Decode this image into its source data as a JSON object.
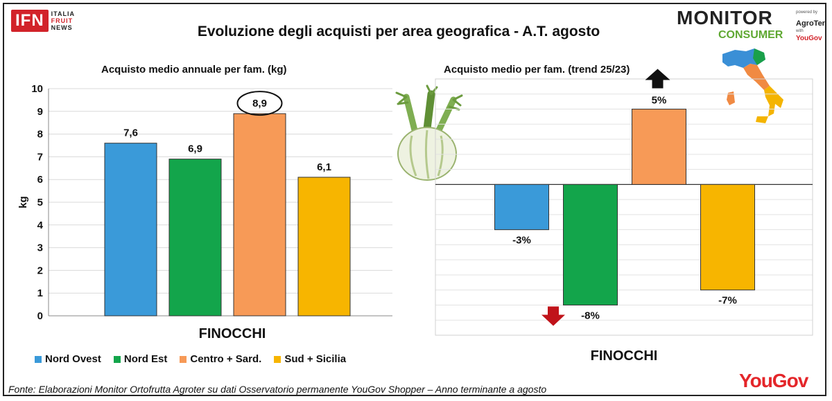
{
  "title": "Evoluzione degli acquisti per area geografica - A.T. agosto",
  "source": "Fonte: Elaborazioni Monitor Ortofrutta Agroter su dati Osservatorio permanente YouGov Shopper – Anno terminante a agosto",
  "logos": {
    "ifn_main": "IFN",
    "ifn_lines": [
      "ITALIA",
      "FRUIT",
      "NEWS"
    ],
    "monitor_title": "MONITOR",
    "monitor_consumer": "CONSUMER",
    "monitor_powered": "powered by",
    "monitor_agroter": "AgroTer",
    "monitor_with": "with",
    "monitor_yougov": "YouGov",
    "yougov": "YouGov"
  },
  "icons": [
    "fennel-icon",
    "italy-map-icon",
    "arrow-up-icon",
    "arrow-down-icon"
  ],
  "legend": [
    {
      "label": "Nord Ovest",
      "color": "#3a9ad9"
    },
    {
      "label": "Nord Est",
      "color": "#13a54b"
    },
    {
      "label": "Centro + Sard.",
      "color": "#f79a57"
    },
    {
      "label": "Sud + Sicilia",
      "color": "#f7b500"
    }
  ],
  "chart_data": [
    {
      "type": "bar",
      "title": "Acquisto  medio annuale per fam. (kg)",
      "xlabel": "FINOCCHI",
      "ylabel": "kg",
      "ylim": [
        0,
        10
      ],
      "yticks": [
        0,
        1,
        2,
        3,
        4,
        5,
        6,
        7,
        8,
        9,
        10
      ],
      "grid": true,
      "categories": [
        "Nord Ovest",
        "Nord Est",
        "Centro + Sard.",
        "Sud + Sicilia"
      ],
      "values": [
        7.6,
        6.9,
        8.9,
        6.1
      ],
      "value_labels": [
        "7,6",
        "6,9",
        "8,9",
        "6,1"
      ],
      "colors": [
        "#3a9ad9",
        "#13a54b",
        "#f79a57",
        "#f7b500"
      ],
      "highlight": "Centro + Sard."
    },
    {
      "type": "bar",
      "title": "Acquisto  medio  per fam.  (trend 25/23)",
      "xlabel": "FINOCCHI",
      "unit": "%",
      "ylim": [
        -10,
        7
      ],
      "grid": true,
      "categories": [
        "Nord Ovest",
        "Nord Est",
        "Centro + Sard.",
        "Sud + Sicilia"
      ],
      "values": [
        -3,
        -8,
        5,
        -7
      ],
      "value_labels": [
        "-3%",
        "-8%",
        "5%",
        "-7%"
      ],
      "colors": [
        "#3a9ad9",
        "#13a54b",
        "#f79a57",
        "#f7b500"
      ]
    }
  ]
}
